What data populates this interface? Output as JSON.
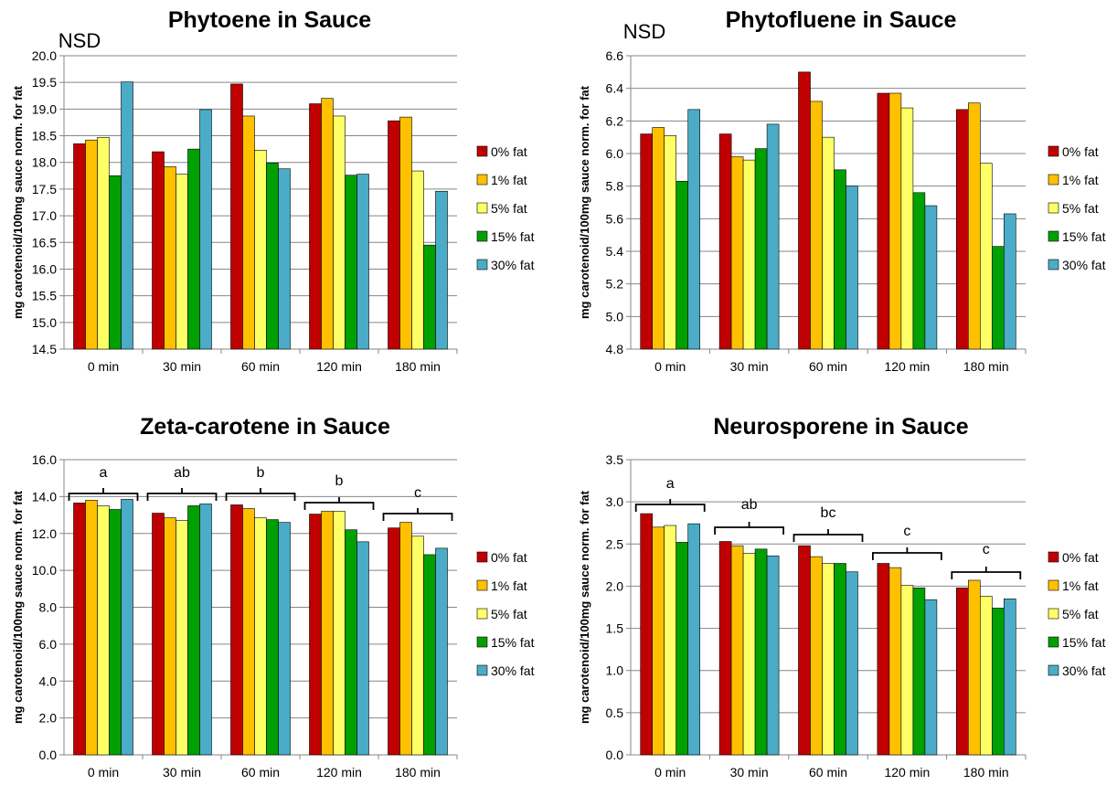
{
  "legend": [
    "0% fat",
    "1% fat",
    "5% fat",
    "15% fat",
    "30% fat"
  ],
  "series_colors": [
    "#c00000",
    "#ffc000",
    "#ffff66",
    "#00a000",
    "#4aacc6"
  ],
  "chart_data": [
    {
      "type": "bar",
      "title": "Phytoene in Sauce",
      "note": "NSD",
      "ylabel": "mg carotenoid/100mg sauce norm. for fat",
      "xlabel": "",
      "categories": [
        "0 min",
        "30 min",
        "60 min",
        "120 min",
        "180 min"
      ],
      "ylim": [
        14.5,
        20.0
      ],
      "ystep": 0.5,
      "ytick_decimals": 1,
      "series": [
        {
          "name": "0% fat",
          "values": [
            18.35,
            18.2,
            19.47,
            19.1,
            18.78
          ]
        },
        {
          "name": "1% fat",
          "values": [
            18.42,
            17.92,
            18.87,
            19.2,
            18.85
          ]
        },
        {
          "name": "5% fat",
          "values": [
            18.47,
            17.78,
            18.23,
            18.87,
            17.84
          ]
        },
        {
          "name": "15% fat",
          "values": [
            17.75,
            18.25,
            17.99,
            17.76,
            16.45
          ]
        },
        {
          "name": "30% fat",
          "values": [
            19.51,
            18.99,
            17.88,
            17.78,
            17.46
          ]
        }
      ],
      "significance": []
    },
    {
      "type": "bar",
      "title": "Phytofluene in Sauce",
      "note": "NSD",
      "ylabel": "mg carotenoid/100mg sauce norm. for fat",
      "xlabel": "",
      "categories": [
        "0 min",
        "30 min",
        "60 min",
        "120 min",
        "180 min"
      ],
      "ylim": [
        4.8,
        6.6
      ],
      "ystep": 0.2,
      "ytick_decimals": 1,
      "series": [
        {
          "name": "0% fat",
          "values": [
            6.12,
            6.12,
            6.5,
            6.37,
            6.27
          ]
        },
        {
          "name": "1% fat",
          "values": [
            6.16,
            5.98,
            6.32,
            6.37,
            6.31
          ]
        },
        {
          "name": "5% fat",
          "values": [
            6.11,
            5.96,
            6.1,
            6.28,
            5.94
          ]
        },
        {
          "name": "15% fat",
          "values": [
            5.83,
            6.03,
            5.9,
            5.76,
            5.43
          ]
        },
        {
          "name": "30% fat",
          "values": [
            6.27,
            6.18,
            5.8,
            5.68,
            5.63
          ]
        }
      ],
      "significance": []
    },
    {
      "type": "bar",
      "title": "Zeta-carotene in Sauce",
      "note": "",
      "ylabel": "mg carotenoid/100mg sauce norm. for fat",
      "xlabel": "",
      "categories": [
        "0 min",
        "30 min",
        "60 min",
        "120 min",
        "180 min"
      ],
      "ylim": [
        0.0,
        16.0
      ],
      "ystep": 2.0,
      "ytick_decimals": 1,
      "series": [
        {
          "name": "0% fat",
          "values": [
            13.65,
            13.1,
            13.55,
            13.05,
            12.3
          ]
        },
        {
          "name": "1% fat",
          "values": [
            13.8,
            12.85,
            13.35,
            13.2,
            12.6
          ]
        },
        {
          "name": "5% fat",
          "values": [
            13.5,
            12.7,
            12.85,
            13.2,
            11.85
          ]
        },
        {
          "name": "15% fat",
          "values": [
            13.3,
            13.5,
            12.75,
            12.2,
            10.85
          ]
        },
        {
          "name": "30% fat",
          "values": [
            13.85,
            13.6,
            12.6,
            11.55,
            11.2
          ]
        }
      ],
      "significance": [
        "a",
        "ab",
        "b",
        "b",
        "c"
      ]
    },
    {
      "type": "bar",
      "title": "Neurosporene in Sauce",
      "note": "",
      "ylabel": "mg carotenoid/100mg sauce norm. for fat",
      "xlabel": "",
      "categories": [
        "0 min",
        "30 min",
        "60 min",
        "120 min",
        "180 min"
      ],
      "ylim": [
        0.0,
        3.5
      ],
      "ystep": 0.5,
      "ytick_decimals": 1,
      "series": [
        {
          "name": "0% fat",
          "values": [
            2.86,
            2.53,
            2.48,
            2.27,
            1.98
          ]
        },
        {
          "name": "1% fat",
          "values": [
            2.7,
            2.48,
            2.35,
            2.22,
            2.07
          ]
        },
        {
          "name": "5% fat",
          "values": [
            2.72,
            2.39,
            2.27,
            2.01,
            1.88
          ]
        },
        {
          "name": "15% fat",
          "values": [
            2.52,
            2.44,
            2.27,
            1.98,
            1.74
          ]
        },
        {
          "name": "30% fat",
          "values": [
            2.74,
            2.36,
            2.17,
            1.84,
            1.85
          ]
        }
      ],
      "significance": [
        "a",
        "ab",
        "bc",
        "c",
        "c"
      ]
    }
  ]
}
